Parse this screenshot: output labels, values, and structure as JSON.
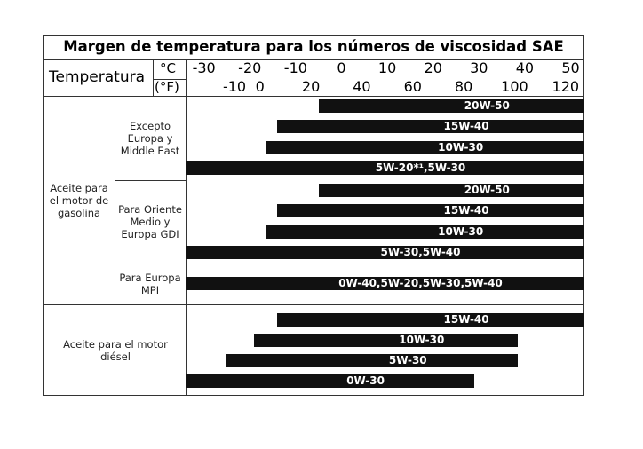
{
  "title": "Margen de temperatura para los números de viscosidad SAE",
  "scale": {
    "header": "Temperatura",
    "celsius_unit": "°C",
    "fahrenheit_unit": "(°F)",
    "xlim": [
      -34,
      53
    ],
    "celsius_ticks": [
      -30,
      -20,
      -10,
      0,
      10,
      20,
      30,
      40,
      50
    ],
    "fahrenheit_ticks": [
      -10,
      0,
      20,
      40,
      60,
      80,
      100,
      120
    ]
  },
  "groups": [
    {
      "label": "Aceite para el motor de gasolina",
      "subgroups": [
        {
          "label": "Excepto Europa y Middle East",
          "bars": [
            {
              "label": "20W-50",
              "start": -5,
              "end": 53
            },
            {
              "label": "15W-40",
              "start": -14,
              "end": 53
            },
            {
              "label": "10W-30",
              "start": -16.5,
              "end": 53
            },
            {
              "label": "5W-20*¹,5W-30",
              "start": -34,
              "end": 53
            }
          ]
        },
        {
          "label": "Para Oriente Medio y Europa GDI",
          "bars": [
            {
              "label": "20W-50",
              "start": -5,
              "end": 53
            },
            {
              "label": "15W-40",
              "start": -14,
              "end": 53
            },
            {
              "label": "10W-30",
              "start": -16.5,
              "end": 53
            },
            {
              "label": "5W-30,5W-40",
              "start": -34,
              "end": 53
            }
          ]
        },
        {
          "label": "Para Europa MPI",
          "bars": [
            {
              "label": "0W-40,5W-20,5W-30,5W-40",
              "start": -34,
              "end": 53
            }
          ]
        }
      ]
    },
    {
      "label": "Aceite para el motor diésel",
      "bars": [
        {
          "label": "15W-40",
          "start": -14,
          "end": 53
        },
        {
          "label": "10W-30",
          "start": -19,
          "end": 38.5
        },
        {
          "label": "5W-30",
          "start": -25,
          "end": 38.5
        },
        {
          "label": "0W-30",
          "start": -34,
          "end": 29
        }
      ]
    }
  ]
}
